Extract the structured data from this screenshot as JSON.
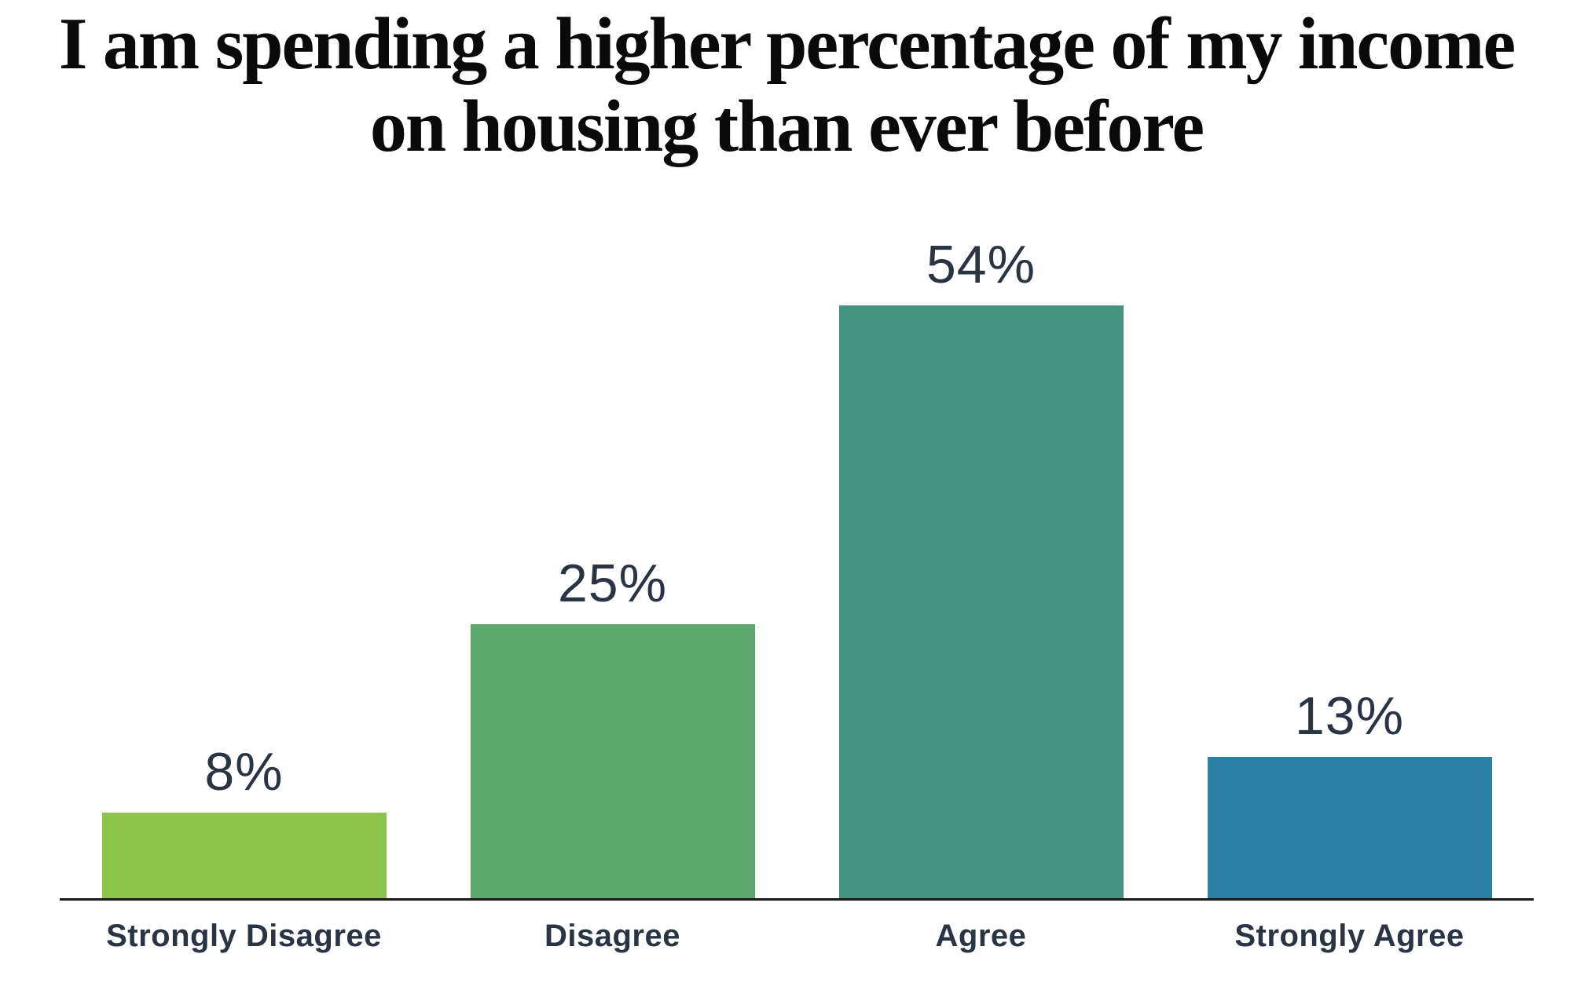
{
  "chart_data": {
    "type": "bar",
    "title": "I am spending a higher percentage of my income on housing than ever before",
    "title_lines": [
      "I am spending a higher percentage of my income",
      "on housing than ever before"
    ],
    "categories": [
      "Strongly Disagree",
      "Disagree",
      "Agree",
      "Strongly Agree"
    ],
    "values": [
      8,
      25,
      54,
      13
    ],
    "value_labels": [
      "8%",
      "25%",
      "54%",
      "13%"
    ],
    "bar_colors": [
      "#8CC44B",
      "#5BAA6B",
      "#44957F",
      "#2A81A5"
    ],
    "xlabel": "",
    "ylabel": "",
    "ylim": [
      0,
      60
    ],
    "grid": false,
    "legend": false,
    "axis_line_color": "#1A1A1A",
    "label_color": "#2B3442",
    "title_color": "#0A0A0A",
    "background": "#FFFFFF"
  }
}
